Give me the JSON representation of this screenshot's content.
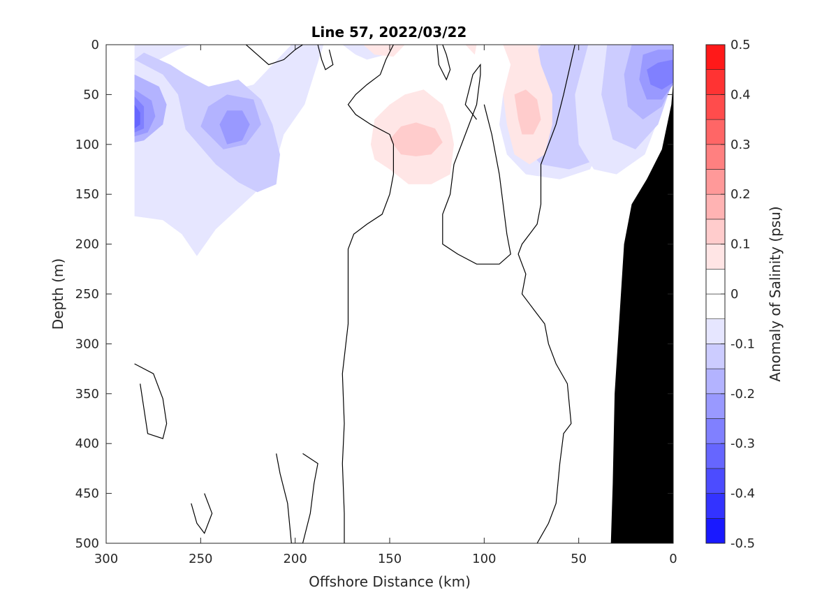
{
  "chart_data": {
    "type": "contour",
    "title": "Line 57, 2022/03/22",
    "xlabel": "Offshore Distance (km)",
    "ylabel": "Depth (m)",
    "xlim": [
      300,
      0
    ],
    "ylim": [
      0,
      500
    ],
    "x_reversed": true,
    "y_reversed": true,
    "xticks": [
      300,
      250,
      200,
      150,
      100,
      50,
      0
    ],
    "yticks": [
      0,
      50,
      100,
      150,
      200,
      250,
      300,
      350,
      400,
      450,
      500
    ],
    "grid": false,
    "colorbar": {
      "label": "Anomaly of Salinity (psu)",
      "range": [
        -0.5,
        0.5
      ],
      "step": 0.05,
      "ticks": [
        0.5,
        0.4,
        0.3,
        0.2,
        0.1,
        0,
        -0.1,
        -0.2,
        -0.3,
        -0.4,
        -0.5
      ],
      "positive_color": "#ff0000",
      "negative_color": "#0000ff",
      "zero_color": "#ffffff"
    },
    "filled_regions": [
      {
        "level": -0.05,
        "points": [
          [
            285,
            0
          ],
          [
            255,
            0
          ],
          [
            262,
            5
          ],
          [
            272,
            15
          ],
          [
            258,
            30
          ],
          [
            248,
            40
          ],
          [
            238,
            48
          ],
          [
            222,
            40
          ],
          [
            202,
            0
          ],
          [
            185,
            0
          ],
          [
            190,
            30
          ],
          [
            195,
            60
          ],
          [
            206,
            90
          ],
          [
            212,
            130
          ],
          [
            222,
            150
          ],
          [
            242,
            185
          ],
          [
            252,
            212
          ],
          [
            260,
            190
          ],
          [
            270,
            176
          ],
          [
            285,
            172
          ]
        ]
      },
      {
        "level": -0.1,
        "points": [
          [
            285,
            15
          ],
          [
            270,
            30
          ],
          [
            262,
            50
          ],
          [
            258,
            85
          ],
          [
            242,
            120
          ],
          [
            230,
            138
          ],
          [
            220,
            148
          ],
          [
            210,
            140
          ],
          [
            208,
            110
          ],
          [
            212,
            80
          ],
          [
            218,
            55
          ],
          [
            230,
            35
          ],
          [
            246,
            42
          ],
          [
            258,
            30
          ],
          [
            266,
            20
          ],
          [
            280,
            8
          ]
        ]
      },
      {
        "level": -0.15,
        "points": [
          [
            285,
            30
          ],
          [
            272,
            42
          ],
          [
            268,
            60
          ],
          [
            270,
            80
          ],
          [
            280,
            96
          ],
          [
            285,
            98
          ]
        ]
      },
      {
        "level": -0.15,
        "points": [
          [
            250,
            82
          ],
          [
            238,
            105
          ],
          [
            226,
            100
          ],
          [
            218,
            80
          ],
          [
            222,
            55
          ],
          [
            236,
            50
          ],
          [
            246,
            62
          ]
        ]
      },
      {
        "level": -0.2,
        "points": [
          [
            285,
            45
          ],
          [
            276,
            56
          ],
          [
            274,
            72
          ],
          [
            278,
            88
          ],
          [
            285,
            92
          ]
        ]
      },
      {
        "level": -0.2,
        "points": [
          [
            240,
            80
          ],
          [
            236,
            100
          ],
          [
            228,
            96
          ],
          [
            224,
            80
          ],
          [
            228,
            66
          ],
          [
            236,
            66
          ]
        ]
      },
      {
        "level": -0.25,
        "points": [
          [
            285,
            52
          ],
          [
            280,
            62
          ],
          [
            280,
            84
          ],
          [
            285,
            88
          ]
        ]
      },
      {
        "level": -0.3,
        "points": [
          [
            285,
            60
          ],
          [
            282,
            68
          ],
          [
            282,
            80
          ],
          [
            285,
            84
          ]
        ]
      },
      {
        "level": -0.05,
        "points": [
          [
            40,
            0
          ],
          [
            38,
            60
          ],
          [
            40,
            110
          ],
          [
            44,
            125
          ],
          [
            60,
            135
          ],
          [
            78,
            130
          ],
          [
            88,
            110
          ],
          [
            92,
            80
          ],
          [
            90,
            50
          ],
          [
            86,
            20
          ],
          [
            80,
            0
          ]
        ]
      },
      {
        "level": -0.1,
        "points": [
          [
            35,
            0
          ],
          [
            30,
            30
          ],
          [
            30,
            70
          ],
          [
            34,
            100
          ],
          [
            40,
            115
          ],
          [
            55,
            125
          ],
          [
            70,
            120
          ],
          [
            80,
            100
          ],
          [
            82,
            70
          ],
          [
            78,
            30
          ],
          [
            70,
            0
          ]
        ]
      },
      {
        "level": -0.05,
        "points": [
          [
            0,
            0
          ],
          [
            0,
            35
          ],
          [
            5,
            60
          ],
          [
            15,
            110
          ],
          [
            30,
            130
          ],
          [
            42,
            125
          ],
          [
            50,
            100
          ],
          [
            52,
            50
          ],
          [
            45,
            0
          ]
        ]
      },
      {
        "level": -0.1,
        "points": [
          [
            0,
            0
          ],
          [
            0,
            35
          ],
          [
            8,
            80
          ],
          [
            20,
            105
          ],
          [
            32,
            95
          ],
          [
            38,
            50
          ],
          [
            35,
            0
          ]
        ]
      },
      {
        "level": -0.15,
        "points": [
          [
            0,
            0
          ],
          [
            0,
            38
          ],
          [
            6,
            62
          ],
          [
            16,
            75
          ],
          [
            24,
            62
          ],
          [
            26,
            30
          ],
          [
            22,
            0
          ]
        ]
      },
      {
        "level": -0.2,
        "points": [
          [
            0,
            5
          ],
          [
            0,
            40
          ],
          [
            6,
            55
          ],
          [
            14,
            55
          ],
          [
            18,
            35
          ],
          [
            16,
            10
          ],
          [
            8,
            5
          ]
        ]
      },
      {
        "level": -0.25,
        "points": [
          [
            0,
            15
          ],
          [
            0,
            38
          ],
          [
            6,
            45
          ],
          [
            12,
            40
          ],
          [
            14,
            25
          ],
          [
            8,
            18
          ]
        ]
      },
      {
        "level": -0.05,
        "points": [
          [
            175,
            0
          ],
          [
            168,
            10
          ],
          [
            162,
            15
          ],
          [
            152,
            10
          ],
          [
            145,
            0
          ]
        ]
      },
      {
        "level": 0.05,
        "points": [
          [
            164,
            0
          ],
          [
            158,
            10
          ],
          [
            148,
            12
          ],
          [
            142,
            0
          ]
        ]
      },
      {
        "level": 0.05,
        "points": [
          [
            110,
            0
          ],
          [
            105,
            10
          ],
          [
            104,
            0
          ]
        ]
      },
      {
        "level": 0.05,
        "points": [
          [
            160,
            100
          ],
          [
            158,
            115
          ],
          [
            150,
            125
          ],
          [
            140,
            140
          ],
          [
            128,
            140
          ],
          [
            118,
            130
          ],
          [
            116,
            100
          ],
          [
            118,
            80
          ],
          [
            122,
            60
          ],
          [
            132,
            45
          ],
          [
            142,
            50
          ],
          [
            150,
            60
          ],
          [
            158,
            75
          ]
        ]
      },
      {
        "level": 0.1,
        "points": [
          [
            150,
            95
          ],
          [
            144,
            110
          ],
          [
            136,
            112
          ],
          [
            128,
            110
          ],
          [
            122,
            98
          ],
          [
            126,
            84
          ],
          [
            136,
            78
          ],
          [
            144,
            82
          ]
        ]
      },
      {
        "level": 0.05,
        "points": [
          [
            90,
            0
          ],
          [
            86,
            20
          ],
          [
            90,
            50
          ],
          [
            88,
            80
          ],
          [
            84,
            110
          ],
          [
            76,
            120
          ],
          [
            68,
            110
          ],
          [
            64,
            80
          ],
          [
            64,
            50
          ],
          [
            70,
            20
          ],
          [
            72,
            0
          ]
        ]
      },
      {
        "level": 0.1,
        "points": [
          [
            84,
            50
          ],
          [
            82,
            75
          ],
          [
            80,
            90
          ],
          [
            74,
            90
          ],
          [
            70,
            75
          ],
          [
            72,
            55
          ],
          [
            78,
            45
          ]
        ]
      }
    ],
    "contour_lines": [
      {
        "level": 0,
        "points": [
          [
            174,
            500
          ],
          [
            174,
            470
          ],
          [
            175,
            420
          ],
          [
            174,
            380
          ],
          [
            175,
            330
          ],
          [
            172,
            280
          ],
          [
            172,
            240
          ],
          [
            172,
            205
          ],
          [
            169,
            190
          ],
          [
            162,
            180
          ],
          [
            154,
            170
          ],
          [
            150,
            150
          ],
          [
            148,
            130
          ],
          [
            148,
            100
          ],
          [
            150,
            90
          ],
          [
            160,
            80
          ],
          [
            168,
            70
          ],
          [
            172,
            60
          ],
          [
            168,
            50
          ],
          [
            162,
            40
          ],
          [
            155,
            30
          ],
          [
            152,
            15
          ],
          [
            148,
            0
          ]
        ]
      },
      {
        "level": 0,
        "points": [
          [
            72,
            500
          ],
          [
            66,
            480
          ],
          [
            62,
            460
          ],
          [
            60,
            420
          ],
          [
            58,
            390
          ],
          [
            54,
            380
          ],
          [
            56,
            340
          ],
          [
            62,
            320
          ],
          [
            66,
            300
          ],
          [
            68,
            280
          ],
          [
            72,
            270
          ],
          [
            76,
            260
          ],
          [
            80,
            250
          ],
          [
            78,
            230
          ],
          [
            82,
            210
          ],
          [
            80,
            200
          ],
          [
            72,
            180
          ],
          [
            70,
            160
          ],
          [
            70,
            120
          ],
          [
            66,
            100
          ],
          [
            62,
            80
          ],
          [
            58,
            50
          ],
          [
            52,
            0
          ]
        ]
      },
      {
        "level": 0,
        "points": [
          [
            100,
            60
          ],
          [
            96,
            90
          ],
          [
            92,
            130
          ],
          [
            90,
            160
          ],
          [
            88,
            190
          ],
          [
            86,
            210
          ],
          [
            92,
            220
          ],
          [
            104,
            220
          ],
          [
            114,
            210
          ],
          [
            122,
            200
          ],
          [
            122,
            170
          ],
          [
            118,
            150
          ],
          [
            116,
            120
          ],
          [
            110,
            90
          ],
          [
            104,
            60
          ],
          [
            102,
            30
          ],
          [
            102,
            20
          ],
          [
            106,
            30
          ],
          [
            110,
            60
          ],
          [
            104,
            75
          ]
        ]
      },
      {
        "level": 0,
        "points": [
          [
            226,
            0
          ],
          [
            220,
            10
          ],
          [
            214,
            20
          ],
          [
            206,
            15
          ],
          [
            200,
            5
          ],
          [
            196,
            0
          ]
        ]
      },
      {
        "level": 0,
        "points": [
          [
            125,
            0
          ],
          [
            124,
            20
          ],
          [
            120,
            35
          ],
          [
            118,
            25
          ],
          [
            120,
            10
          ],
          [
            122,
            0
          ]
        ]
      },
      {
        "level": 0,
        "points": [
          [
            188,
            0
          ],
          [
            186,
            15
          ],
          [
            184,
            25
          ],
          [
            180,
            20
          ],
          [
            182,
            5
          ]
        ]
      },
      {
        "level": 0,
        "points": [
          [
            285,
            320
          ],
          [
            275,
            330
          ],
          [
            270,
            355
          ],
          [
            268,
            380
          ],
          [
            270,
            395
          ],
          [
            278,
            390
          ],
          [
            280,
            365
          ],
          [
            282,
            340
          ]
        ]
      },
      {
        "level": 0,
        "points": [
          [
            210,
            410
          ],
          [
            208,
            430
          ],
          [
            204,
            460
          ],
          [
            202,
            500
          ],
          [
            196,
            500
          ],
          [
            192,
            470
          ],
          [
            190,
            440
          ],
          [
            188,
            420
          ],
          [
            196,
            410
          ]
        ]
      },
      {
        "level": 0,
        "points": [
          [
            248,
            450
          ],
          [
            244,
            470
          ],
          [
            248,
            490
          ],
          [
            252,
            480
          ],
          [
            255,
            460
          ]
        ]
      }
    ],
    "bathymetry": {
      "color": "#000000",
      "points": [
        [
          0,
          36
        ],
        [
          0,
          500
        ],
        [
          33,
          500
        ],
        [
          32,
          440
        ],
        [
          31,
          350
        ],
        [
          26,
          200
        ],
        [
          22,
          160
        ],
        [
          14,
          135
        ],
        [
          6,
          105
        ],
        [
          1,
          60
        ]
      ]
    }
  }
}
